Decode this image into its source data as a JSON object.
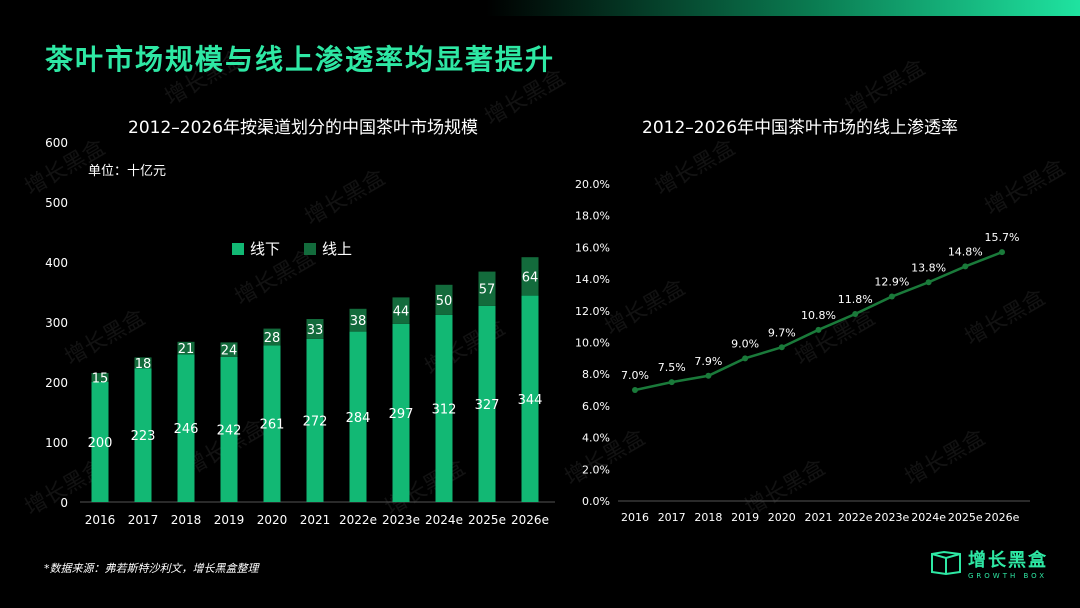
{
  "page_title": "茶叶市场规模与线上渗透率均显著提升",
  "source": "*数据来源：弗若斯特沙利文，增长黑盒整理",
  "brand": {
    "name": "增长黑盒",
    "sub": "GROWTH BOX",
    "watermark": "增长黑盒"
  },
  "colors": {
    "accent": "#2ee8a4",
    "offline": "#12b874",
    "online": "#136b3c",
    "line": "#1a7a3a"
  },
  "chart_data": [
    {
      "type": "bar",
      "stacked": true,
      "title": "2012–2026年按渠道划分的中国茶叶市场规模",
      "unit_label": "单位：十亿元",
      "categories": [
        "2016",
        "2017",
        "2018",
        "2019",
        "2020",
        "2021",
        "2022e",
        "2023e",
        "2024e",
        "2025e",
        "2026e"
      ],
      "series": [
        {
          "name": "线下",
          "values": [
            200,
            223,
            246,
            242,
            261,
            272,
            284,
            297,
            312,
            327,
            344
          ]
        },
        {
          "name": "线上",
          "values": [
            15,
            18,
            21,
            24,
            28,
            33,
            38,
            44,
            50,
            57,
            64
          ]
        }
      ],
      "yticks": [
        "0",
        "100",
        "200",
        "300",
        "400",
        "500",
        "600"
      ],
      "ylim": [
        0,
        600
      ],
      "legend_position": "top-center"
    },
    {
      "type": "line",
      "title": "2012–2026年中国茶叶市场的线上渗透率",
      "categories": [
        "2016",
        "2017",
        "2018",
        "2019",
        "2020",
        "2021",
        "2022e",
        "2023e",
        "2024e",
        "2025e",
        "2026e"
      ],
      "values": [
        7.0,
        7.5,
        7.9,
        9.0,
        9.7,
        10.8,
        11.8,
        12.9,
        13.8,
        14.8,
        15.7
      ],
      "labels": [
        "7.0%",
        "7.5%",
        "7.9%",
        "9.0%",
        "9.7%",
        "10.8%",
        "11.8%",
        "12.9%",
        "13.8%",
        "14.8%",
        "15.7%"
      ],
      "yticks": [
        "0.0%",
        "2.0%",
        "4.0%",
        "6.0%",
        "8.0%",
        "10.0%",
        "12.0%",
        "14.0%",
        "16.0%",
        "18.0%",
        "20.0%"
      ],
      "ylim": [
        0,
        20
      ]
    }
  ]
}
